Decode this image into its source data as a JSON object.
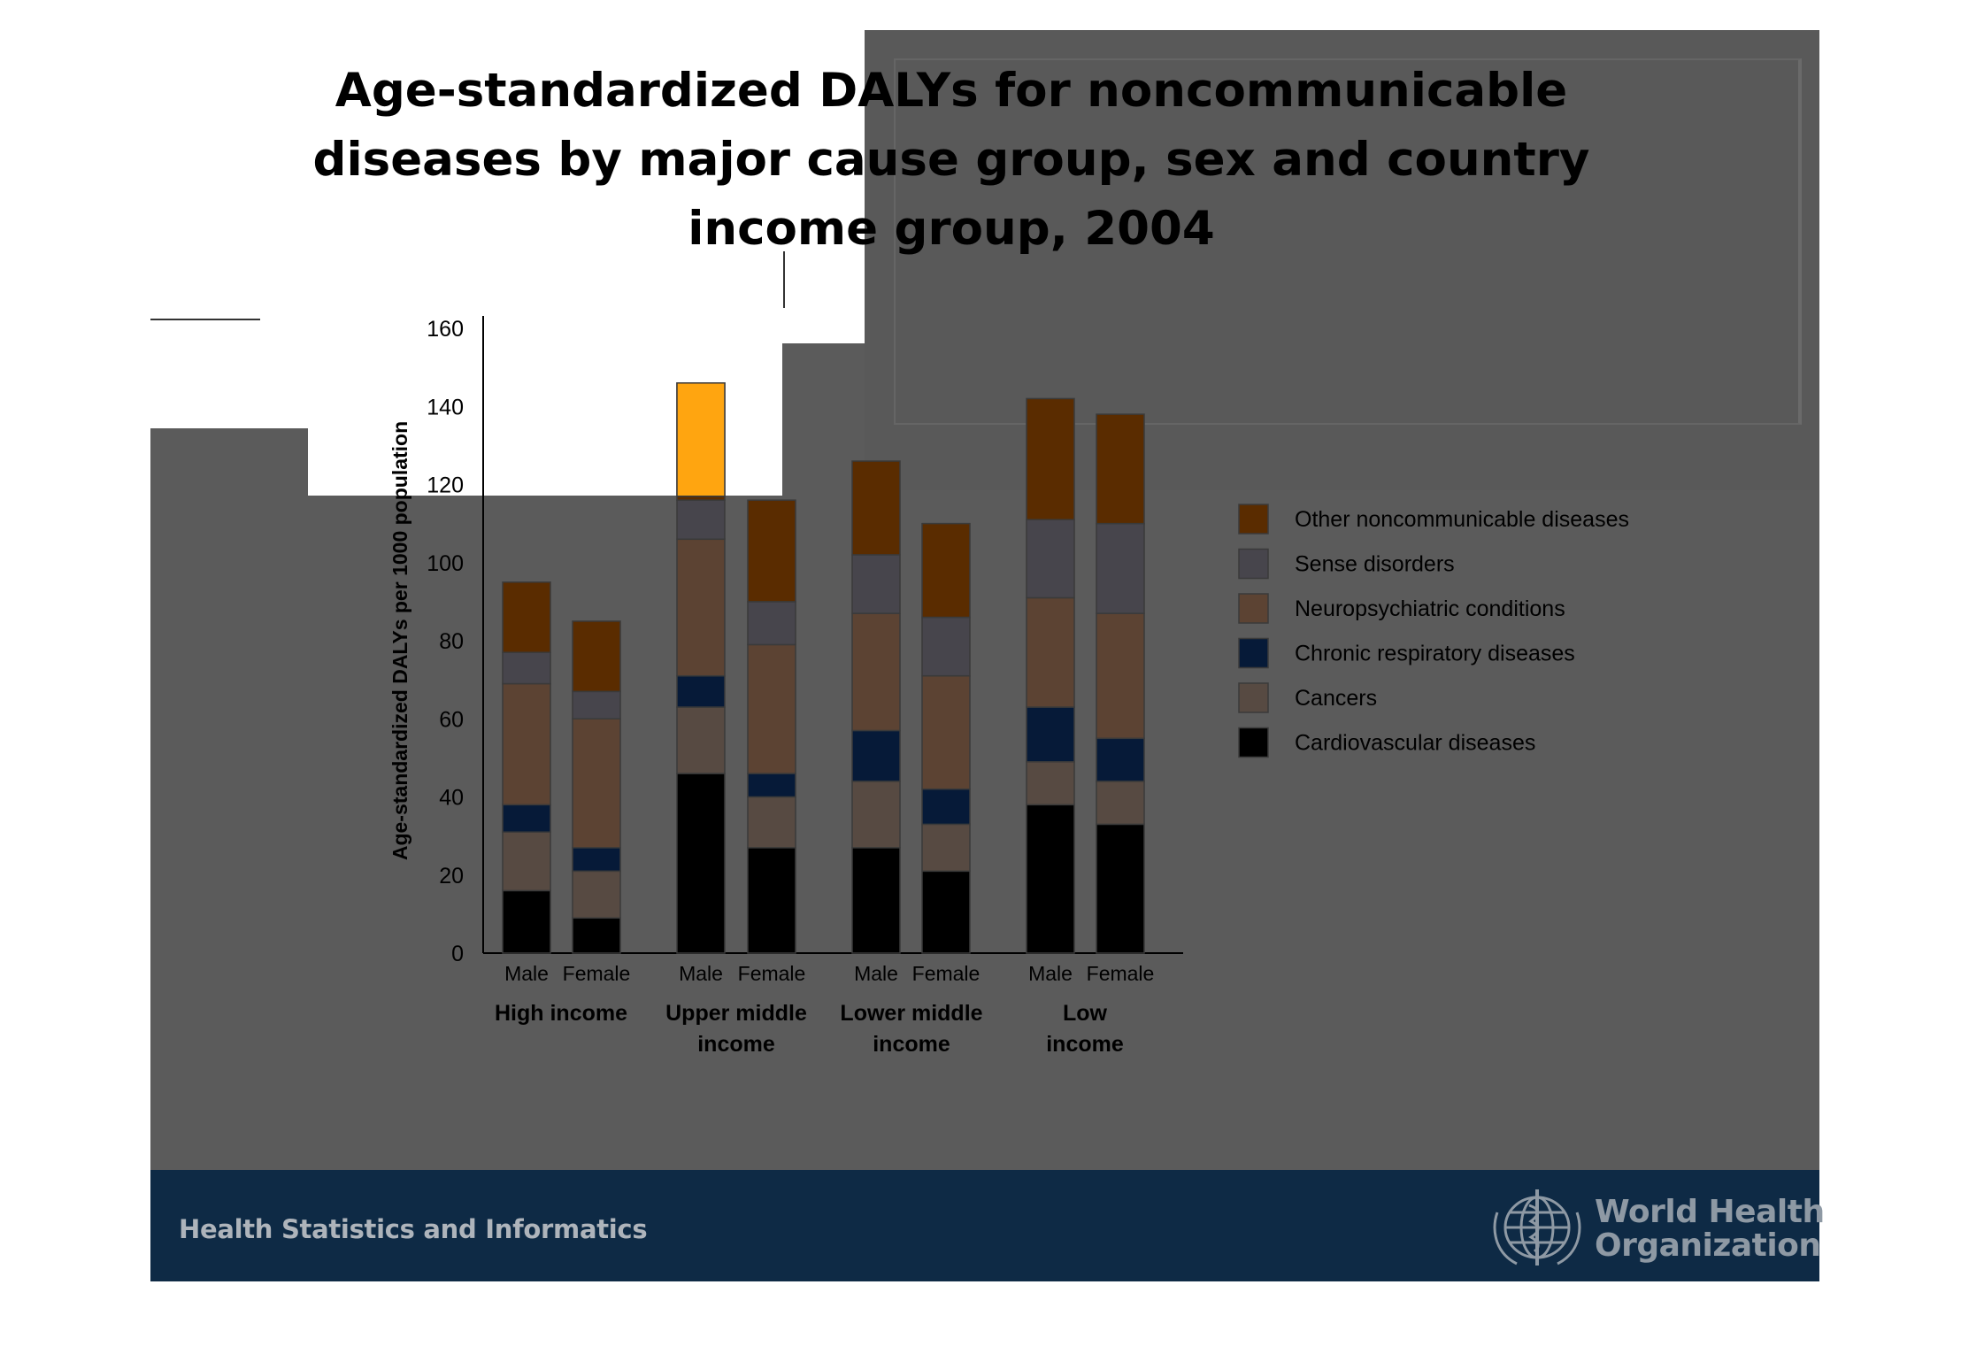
{
  "slide": {
    "title": "Age-standardized DALYs for noncommunicable diseases by major cause group,  sex and country income group, 2004",
    "footer_left": "Health Statistics and Informatics",
    "footer_right_line1": "World Health",
    "footer_right_line2": "Organization",
    "colors": {
      "background": "#5b5b5b",
      "footer": "#0e2a45"
    }
  },
  "chart_data": {
    "type": "bar",
    "stacked": true,
    "title": "",
    "ylabel": "Age-standardized DALYs per 1000 population",
    "xlabel": "",
    "ylim": [
      0,
      160
    ],
    "yticks": [
      0,
      20,
      40,
      60,
      80,
      100,
      120,
      140,
      160
    ],
    "grid": false,
    "legend_position": "right",
    "categories": [
      "Male",
      "Female",
      "Male",
      "Female",
      "Male",
      "Female",
      "Male",
      "Female"
    ],
    "groups": [
      {
        "label": "High income",
        "categories": [
          0,
          1
        ]
      },
      {
        "label": "Upper middle income",
        "categories": [
          2,
          3
        ]
      },
      {
        "label": "Lower middle income",
        "categories": [
          4,
          5
        ]
      },
      {
        "label": "Low income",
        "categories": [
          6,
          7
        ]
      }
    ],
    "series": [
      {
        "name": "Cardiovascular diseases",
        "color": "#000000",
        "values": [
          16,
          9,
          46,
          27,
          27,
          21,
          38,
          33
        ]
      },
      {
        "name": "Cancers",
        "color": "#574a42",
        "values": [
          15,
          12,
          17,
          13,
          17,
          12,
          11,
          11
        ]
      },
      {
        "name": "Chronic respiratory diseases",
        "color": "#061a38",
        "values": [
          7,
          6,
          8,
          6,
          13,
          9,
          14,
          11
        ]
      },
      {
        "name": "Neuropsychiatric conditions",
        "color": "#5c4333",
        "values": [
          31,
          33,
          35,
          33,
          30,
          29,
          28,
          32
        ]
      },
      {
        "name": "Sense disorders",
        "color": "#47454c",
        "values": [
          8,
          7,
          10,
          11,
          15,
          15,
          20,
          23
        ]
      },
      {
        "name": "Other noncommunicable diseases",
        "color": "#5a2c00",
        "values": [
          18,
          18,
          30,
          26,
          24,
          24,
          31,
          28
        ]
      }
    ],
    "highlight": {
      "category_index": 2,
      "color": "#ffa510",
      "note": ""
    }
  }
}
